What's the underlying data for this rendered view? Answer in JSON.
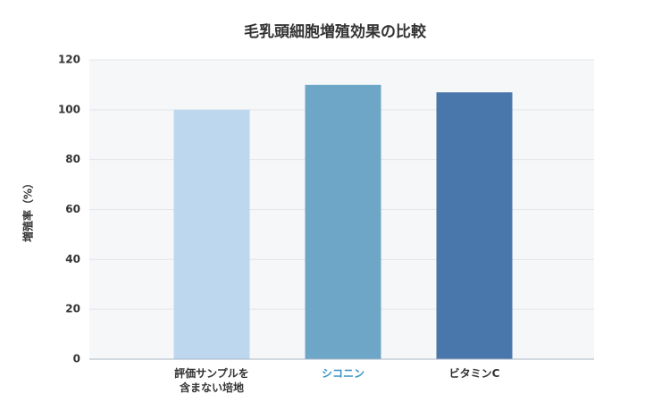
{
  "chart_data": {
    "type": "bar",
    "title": "毛乳頭細胞増殖効果の比較",
    "y_label": "増殖率（%）",
    "categories": [
      "評価サンプルを含まない培地",
      "シコニン",
      "ビタミンC"
    ],
    "values": [
      100,
      110,
      107
    ],
    "colors": [
      "#bcd7ee",
      "#6ea6c8",
      "#4a77ab"
    ],
    "category_label_colors": [
      "#333333",
      "#3a93c4",
      "#333333"
    ],
    "ylim": [
      0,
      120
    ],
    "yticks": [
      0,
      20,
      40,
      60,
      80,
      100,
      120
    ],
    "grid": true
  }
}
